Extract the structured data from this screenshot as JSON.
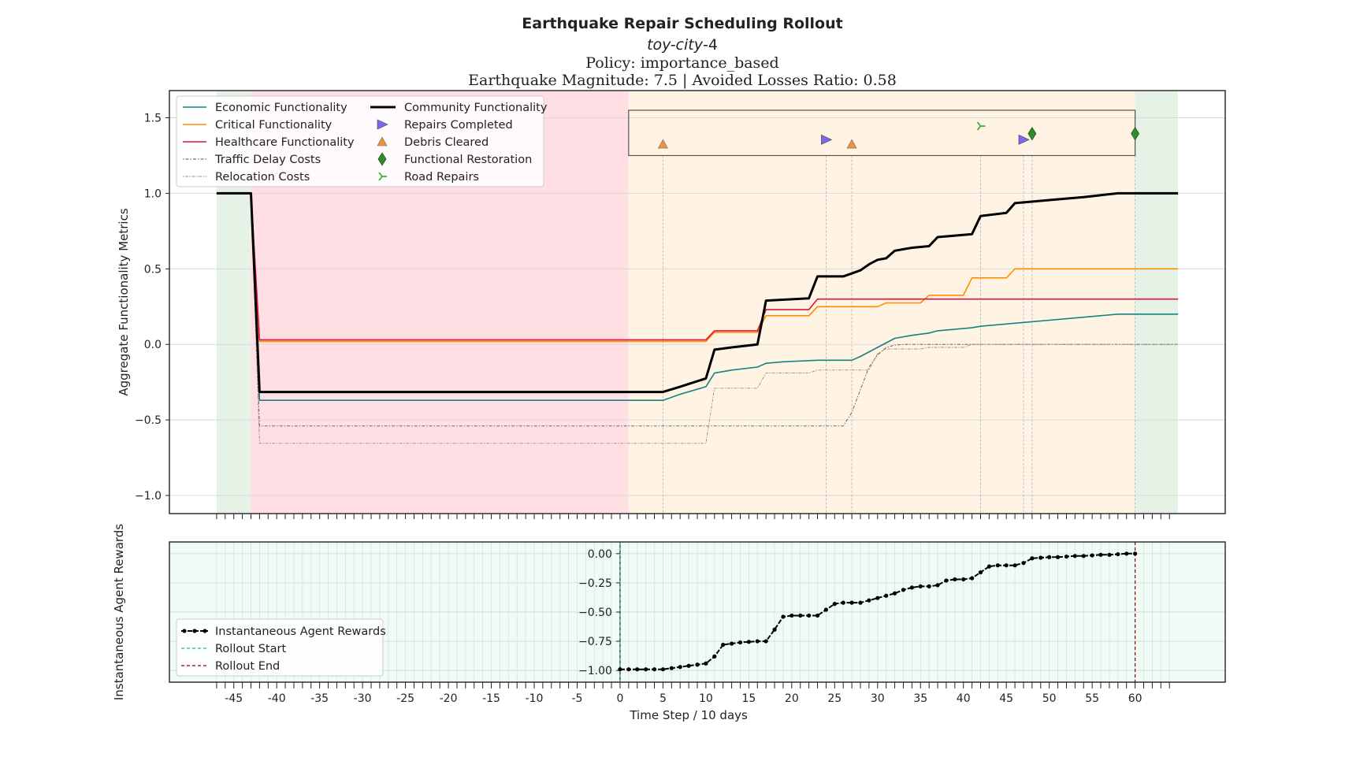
{
  "title": "Earthquake Repair Scheduling Rollout",
  "subtitle_city_italic": "toy-city",
  "subtitle_city_suffix": "-4",
  "policy_line": "Policy: importance_based",
  "magnitude_line": "Earthquake Magnitude: 7.5 | Avoided Losses Ratio: 0.58",
  "colors": {
    "economic": "#138282",
    "critical": "#ff8c00",
    "healthcare": "#dc143c",
    "community": "#000000",
    "traffic": "#555555",
    "relocation": "#a08a8a",
    "repairs_marker": "#7b68ee",
    "debris_marker": "#e0964a",
    "restoration_marker": "#2e8b2e",
    "road_marker": "#3cb03c",
    "earthquake_span": "#ffdfe3",
    "rollout_span": "#fff4e3",
    "pre_span": "#e6f2e6",
    "post_span": "#e6f2e6",
    "rewards_bg": "#f0fbf6",
    "rollout_end": "#8b0000",
    "rollout_start": "#20b2aa"
  },
  "chart_data": [
    {
      "type": "line",
      "ylabel": "Aggregate Functionality Metrics",
      "xlim": [
        -52.5,
        70.5
      ],
      "ylim": [
        -1.12,
        1.68
      ],
      "yticks": [
        -1.0,
        -0.5,
        0.0,
        0.5,
        1.0,
        1.5
      ],
      "ytick_labels": [
        "−1.0",
        "−0.5",
        "0.0",
        "0.5",
        "1.0",
        "1.5"
      ],
      "grid": true,
      "legend_position": "upper-left",
      "spans": [
        {
          "x0": -47,
          "x1": -43,
          "kind": "pre"
        },
        {
          "x0": -43,
          "x1": 1,
          "kind": "earthquake"
        },
        {
          "x0": 1,
          "x1": 60,
          "kind": "rollout"
        },
        {
          "x0": 60,
          "x1": 65,
          "kind": "post"
        }
      ],
      "marker_box": {
        "x0": 1,
        "x1": 60,
        "y0": 1.25,
        "y1": 1.55
      },
      "series": [
        {
          "name": "Economic Functionality",
          "key": "economic",
          "points": [
            [
              -47,
              1.0
            ],
            [
              -43,
              1.0
            ],
            [
              -42,
              -0.37
            ],
            [
              5,
              -0.37
            ],
            [
              7,
              -0.33
            ],
            [
              10,
              -0.28
            ],
            [
              11,
              -0.19
            ],
            [
              13,
              -0.17
            ],
            [
              16,
              -0.15
            ],
            [
              17,
              -0.125
            ],
            [
              19,
              -0.115
            ],
            [
              23,
              -0.105
            ],
            [
              27,
              -0.105
            ],
            [
              28,
              -0.08
            ],
            [
              30,
              -0.02
            ],
            [
              32,
              0.04
            ],
            [
              34,
              0.06
            ],
            [
              36,
              0.075
            ],
            [
              37,
              0.09
            ],
            [
              41,
              0.11
            ],
            [
              42,
              0.12
            ],
            [
              46,
              0.14
            ],
            [
              50,
              0.16
            ],
            [
              54,
              0.18
            ],
            [
              58,
              0.2
            ],
            [
              65,
              0.2
            ]
          ]
        },
        {
          "name": "Critical Functionality",
          "key": "critical",
          "points": [
            [
              -47,
              1.0
            ],
            [
              -43,
              1.0
            ],
            [
              -42,
              0.02
            ],
            [
              10,
              0.02
            ],
            [
              11,
              0.08
            ],
            [
              16,
              0.08
            ],
            [
              17,
              0.19
            ],
            [
              22,
              0.19
            ],
            [
              23,
              0.25
            ],
            [
              30,
              0.25
            ],
            [
              31,
              0.275
            ],
            [
              35,
              0.275
            ],
            [
              36,
              0.325
            ],
            [
              40,
              0.325
            ],
            [
              41,
              0.44
            ],
            [
              45,
              0.44
            ],
            [
              46,
              0.5
            ],
            [
              65,
              0.5
            ]
          ]
        },
        {
          "name": "Healthcare Functionality",
          "key": "healthcare",
          "points": [
            [
              -47,
              1.0
            ],
            [
              -43,
              1.0
            ],
            [
              -42,
              0.03
            ],
            [
              10,
              0.03
            ],
            [
              11,
              0.09
            ],
            [
              16,
              0.09
            ],
            [
              17,
              0.23
            ],
            [
              22,
              0.23
            ],
            [
              23,
              0.3
            ],
            [
              65,
              0.3
            ]
          ]
        },
        {
          "name": "Traffic Delay Costs",
          "key": "traffic",
          "dash": "1.5,2,4,2",
          "points": [
            [
              -47,
              1.0
            ],
            [
              -43,
              1.0
            ],
            [
              -42,
              -0.54
            ],
            [
              26,
              -0.54
            ],
            [
              27,
              -0.45
            ],
            [
              28,
              -0.3
            ],
            [
              29,
              -0.15
            ],
            [
              30,
              -0.07
            ],
            [
              31,
              -0.02
            ],
            [
              32,
              -0.005
            ],
            [
              33,
              0.0
            ],
            [
              65,
              0.0
            ]
          ]
        },
        {
          "name": "Relocation Costs",
          "key": "relocation",
          "dash": "1.5,1.5,4,1.5",
          "points": [
            [
              -47,
              1.0
            ],
            [
              -43,
              1.0
            ],
            [
              -42,
              -0.655
            ],
            [
              10,
              -0.655
            ],
            [
              11,
              -0.29
            ],
            [
              16,
              -0.29
            ],
            [
              17,
              -0.19
            ],
            [
              22,
              -0.19
            ],
            [
              23,
              -0.17
            ],
            [
              29,
              -0.17
            ],
            [
              30,
              -0.06
            ],
            [
              31,
              -0.03
            ],
            [
              35,
              -0.03
            ],
            [
              36,
              -0.02
            ],
            [
              40,
              -0.02
            ],
            [
              41,
              0.0
            ],
            [
              65,
              0.0
            ]
          ]
        },
        {
          "name": "Community Functionality",
          "key": "community",
          "width": 3,
          "points": [
            [
              -47,
              1.0
            ],
            [
              -43,
              1.0
            ],
            [
              -42,
              -0.315
            ],
            [
              5,
              -0.315
            ],
            [
              7,
              -0.28
            ],
            [
              10,
              -0.225
            ],
            [
              11,
              -0.035
            ],
            [
              13,
              -0.02
            ],
            [
              16,
              0.0
            ],
            [
              17,
              0.29
            ],
            [
              22,
              0.305
            ],
            [
              23,
              0.45
            ],
            [
              26,
              0.45
            ],
            [
              28,
              0.49
            ],
            [
              29,
              0.53
            ],
            [
              30,
              0.56
            ],
            [
              31,
              0.57
            ],
            [
              32,
              0.62
            ],
            [
              34,
              0.64
            ],
            [
              36,
              0.65
            ],
            [
              37,
              0.71
            ],
            [
              41,
              0.73
            ],
            [
              42,
              0.85
            ],
            [
              45,
              0.87
            ],
            [
              46,
              0.935
            ],
            [
              50,
              0.955
            ],
            [
              54,
              0.975
            ],
            [
              58,
              1.0
            ],
            [
              65,
              1.0
            ]
          ]
        }
      ],
      "markers": [
        {
          "name": "Repairs Completed",
          "key": "repairs_marker",
          "shape": "triangle-right",
          "points": [
            [
              24,
              1.355
            ],
            [
              47,
              1.355
            ]
          ]
        },
        {
          "name": "Debris Cleared",
          "key": "debris_marker",
          "shape": "triangle-up",
          "points": [
            [
              5,
              1.325
            ],
            [
              27,
              1.325
            ]
          ]
        },
        {
          "name": "Functional Restoration",
          "key": "restoration_marker",
          "shape": "thin-diamond",
          "points": [
            [
              48,
              1.395
            ],
            [
              60,
              1.395
            ]
          ]
        },
        {
          "name": "Road Repairs",
          "key": "road_marker",
          "shape": "tri-right",
          "points": [
            [
              42,
              1.445
            ]
          ]
        }
      ],
      "event_lines_x": [
        5,
        24,
        27,
        42,
        47,
        48,
        60
      ]
    },
    {
      "type": "line",
      "ylabel": "Instantaneous Agent Rewards",
      "xlabel": "Time Step / 10 days",
      "xlim": [
        -52.5,
        70.5
      ],
      "ylim": [
        -1.1,
        0.1
      ],
      "yticks": [
        0.0,
        -0.25,
        -0.5,
        -0.75,
        -1.0
      ],
      "ytick_labels": [
        "0.00",
        "−0.25",
        "−0.50",
        "−0.75",
        "−1.00"
      ],
      "xticks": [
        -45,
        -40,
        -35,
        -30,
        -25,
        -20,
        -15,
        -10,
        -5,
        0,
        5,
        10,
        15,
        20,
        25,
        30,
        35,
        40,
        45,
        50,
        55,
        60
      ],
      "xtick_labels": [
        "-45",
        "-40",
        "-35",
        "-30",
        "-25",
        "-20",
        "-15",
        "-10",
        "-5",
        "0",
        "5",
        "10",
        "15",
        "20",
        "25",
        "30",
        "35",
        "40",
        "45",
        "50",
        "55",
        "60"
      ],
      "minor_xtick_range": [
        -47,
        64
      ],
      "rollout_start_x": 0,
      "rollout_end_x": 60,
      "legend_position": "lower-left",
      "series": [
        {
          "name": "Instantaneous Agent Rewards",
          "key": "community",
          "x": [
            0,
            1,
            2,
            3,
            4,
            5,
            6,
            7,
            8,
            9,
            10,
            11,
            12,
            13,
            14,
            15,
            16,
            17,
            18,
            19,
            20,
            21,
            22,
            23,
            24,
            25,
            26,
            27,
            28,
            29,
            30,
            31,
            32,
            33,
            34,
            35,
            36,
            37,
            38,
            39,
            40,
            41,
            42,
            43,
            44,
            45,
            46,
            47,
            48,
            49,
            50,
            51,
            52,
            53,
            54,
            55,
            56,
            57,
            58,
            59,
            60
          ],
          "values": [
            -0.99,
            -0.99,
            -0.99,
            -0.99,
            -0.99,
            -0.99,
            -0.98,
            -0.97,
            -0.96,
            -0.95,
            -0.94,
            -0.88,
            -0.78,
            -0.77,
            -0.76,
            -0.755,
            -0.75,
            -0.75,
            -0.65,
            -0.54,
            -0.53,
            -0.53,
            -0.53,
            -0.53,
            -0.48,
            -0.43,
            -0.42,
            -0.42,
            -0.42,
            -0.4,
            -0.38,
            -0.36,
            -0.34,
            -0.31,
            -0.29,
            -0.28,
            -0.28,
            -0.27,
            -0.23,
            -0.22,
            -0.22,
            -0.21,
            -0.16,
            -0.11,
            -0.1,
            -0.1,
            -0.1,
            -0.08,
            -0.04,
            -0.035,
            -0.03,
            -0.03,
            -0.025,
            -0.02,
            -0.02,
            -0.015,
            -0.01,
            -0.01,
            -0.005,
            0.0,
            0.0
          ]
        }
      ],
      "legend_entries": [
        "Instantaneous Agent Rewards",
        "Rollout Start",
        "Rollout End"
      ]
    }
  ]
}
